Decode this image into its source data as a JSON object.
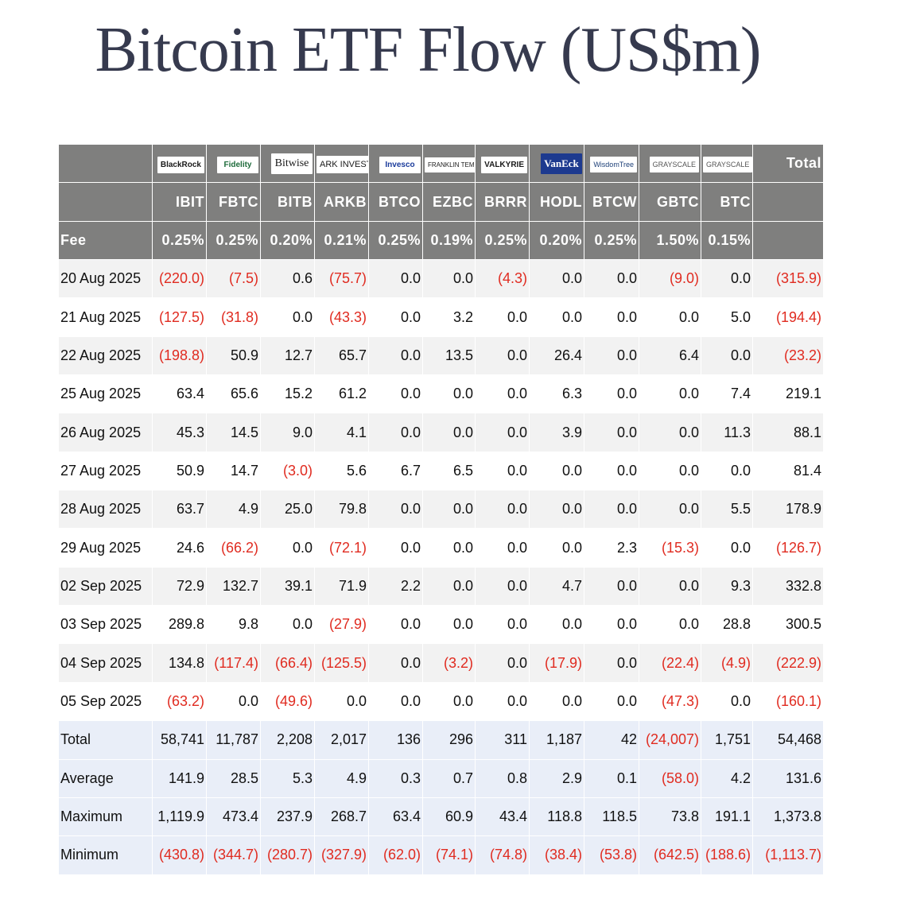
{
  "title": "Bitcoin ETF Flow (US$m)",
  "header": {
    "logos": [
      {
        "name": "blackrock-logo",
        "text": "BlackRock"
      },
      {
        "name": "fidelity-logo",
        "text": "Fidelity"
      },
      {
        "name": "bitwise-logo",
        "text": "Bitwise"
      },
      {
        "name": "ark-invest-logo",
        "text": "ARK INVEST"
      },
      {
        "name": "invesco-logo",
        "text": "Invesco"
      },
      {
        "name": "franklin-templeton-logo",
        "text": "FRANKLIN TEMPLETON"
      },
      {
        "name": "valkyrie-logo",
        "text": "VALKYRIE"
      },
      {
        "name": "vaneck-logo",
        "text": "VanEck"
      },
      {
        "name": "wisdomtree-logo",
        "text": "WisdomTree"
      },
      {
        "name": "grayscale-logo",
        "text": "GRAYSCALE"
      },
      {
        "name": "grayscale-logo",
        "text": "GRAYSCALE"
      }
    ],
    "total_label": "Total",
    "tickers": [
      "IBIT",
      "FBTC",
      "BITB",
      "ARKB",
      "BTCO",
      "EZBC",
      "BRRR",
      "HODL",
      "BTCW",
      "GBTC",
      "BTC"
    ],
    "fee_label": "Fee",
    "fees": [
      "0.25%",
      "0.25%",
      "0.20%",
      "0.21%",
      "0.25%",
      "0.19%",
      "0.25%",
      "0.20%",
      "0.25%",
      "1.50%",
      "0.15%"
    ]
  },
  "rows": [
    {
      "date": "20 Aug 2025",
      "values": [
        "(220.0)",
        "(7.5)",
        "0.6",
        "(75.7)",
        "0.0",
        "0.0",
        "(4.3)",
        "0.0",
        "0.0",
        "(9.0)",
        "0.0",
        "(315.9)"
      ]
    },
    {
      "date": "21 Aug 2025",
      "values": [
        "(127.5)",
        "(31.8)",
        "0.0",
        "(43.3)",
        "0.0",
        "3.2",
        "0.0",
        "0.0",
        "0.0",
        "0.0",
        "5.0",
        "(194.4)"
      ]
    },
    {
      "date": "22 Aug 2025",
      "values": [
        "(198.8)",
        "50.9",
        "12.7",
        "65.7",
        "0.0",
        "13.5",
        "0.0",
        "26.4",
        "0.0",
        "6.4",
        "0.0",
        "(23.2)"
      ]
    },
    {
      "date": "25 Aug 2025",
      "values": [
        "63.4",
        "65.6",
        "15.2",
        "61.2",
        "0.0",
        "0.0",
        "0.0",
        "6.3",
        "0.0",
        "0.0",
        "7.4",
        "219.1"
      ]
    },
    {
      "date": "26 Aug 2025",
      "values": [
        "45.3",
        "14.5",
        "9.0",
        "4.1",
        "0.0",
        "0.0",
        "0.0",
        "3.9",
        "0.0",
        "0.0",
        "11.3",
        "88.1"
      ]
    },
    {
      "date": "27 Aug 2025",
      "values": [
        "50.9",
        "14.7",
        "(3.0)",
        "5.6",
        "6.7",
        "6.5",
        "0.0",
        "0.0",
        "0.0",
        "0.0",
        "0.0",
        "81.4"
      ]
    },
    {
      "date": "28 Aug 2025",
      "values": [
        "63.7",
        "4.9",
        "25.0",
        "79.8",
        "0.0",
        "0.0",
        "0.0",
        "0.0",
        "0.0",
        "0.0",
        "5.5",
        "178.9"
      ]
    },
    {
      "date": "29 Aug 2025",
      "values": [
        "24.6",
        "(66.2)",
        "0.0",
        "(72.1)",
        "0.0",
        "0.0",
        "0.0",
        "0.0",
        "2.3",
        "(15.3)",
        "0.0",
        "(126.7)"
      ]
    },
    {
      "date": "02 Sep 2025",
      "values": [
        "72.9",
        "132.7",
        "39.1",
        "71.9",
        "2.2",
        "0.0",
        "0.0",
        "4.7",
        "0.0",
        "0.0",
        "9.3",
        "332.8"
      ]
    },
    {
      "date": "03 Sep 2025",
      "values": [
        "289.8",
        "9.8",
        "0.0",
        "(27.9)",
        "0.0",
        "0.0",
        "0.0",
        "0.0",
        "0.0",
        "0.0",
        "28.8",
        "300.5"
      ]
    },
    {
      "date": "04 Sep 2025",
      "values": [
        "134.8",
        "(117.4)",
        "(66.4)",
        "(125.5)",
        "0.0",
        "(3.2)",
        "0.0",
        "(17.9)",
        "0.0",
        "(22.4)",
        "(4.9)",
        "(222.9)"
      ]
    },
    {
      "date": "05 Sep 2025",
      "values": [
        "(63.2)",
        "0.0",
        "(49.6)",
        "0.0",
        "0.0",
        "0.0",
        "0.0",
        "0.0",
        "0.0",
        "(47.3)",
        "0.0",
        "(160.1)"
      ]
    }
  ],
  "summary": [
    {
      "label": "Total",
      "values": [
        "58,741",
        "11,787",
        "2,208",
        "2,017",
        "136",
        "296",
        "311",
        "1,187",
        "42",
        "(24,007)",
        "1,751",
        "54,468"
      ]
    },
    {
      "label": "Average",
      "values": [
        "141.9",
        "28.5",
        "5.3",
        "4.9",
        "0.3",
        "0.7",
        "0.8",
        "2.9",
        "0.1",
        "(58.0)",
        "4.2",
        "131.6"
      ]
    },
    {
      "label": "Maximum",
      "values": [
        "1,119.9",
        "473.4",
        "237.9",
        "268.7",
        "63.4",
        "60.9",
        "43.4",
        "118.8",
        "118.5",
        "73.8",
        "191.1",
        "1,373.8"
      ]
    },
    {
      "label": "Minimum",
      "values": [
        "(430.8)",
        "(344.7)",
        "(280.7)",
        "(327.9)",
        "(62.0)",
        "(74.1)",
        "(74.8)",
        "(38.4)",
        "(53.8)",
        "(642.5)",
        "(188.6)",
        "(1,113.7)"
      ]
    }
  ],
  "colors": {
    "header_bg": "#7f7f7e",
    "negative": "#e02b20",
    "title": "#363a4e",
    "summary_bg": "#e9eef8",
    "stripe_bg": "#f2f2f2"
  }
}
